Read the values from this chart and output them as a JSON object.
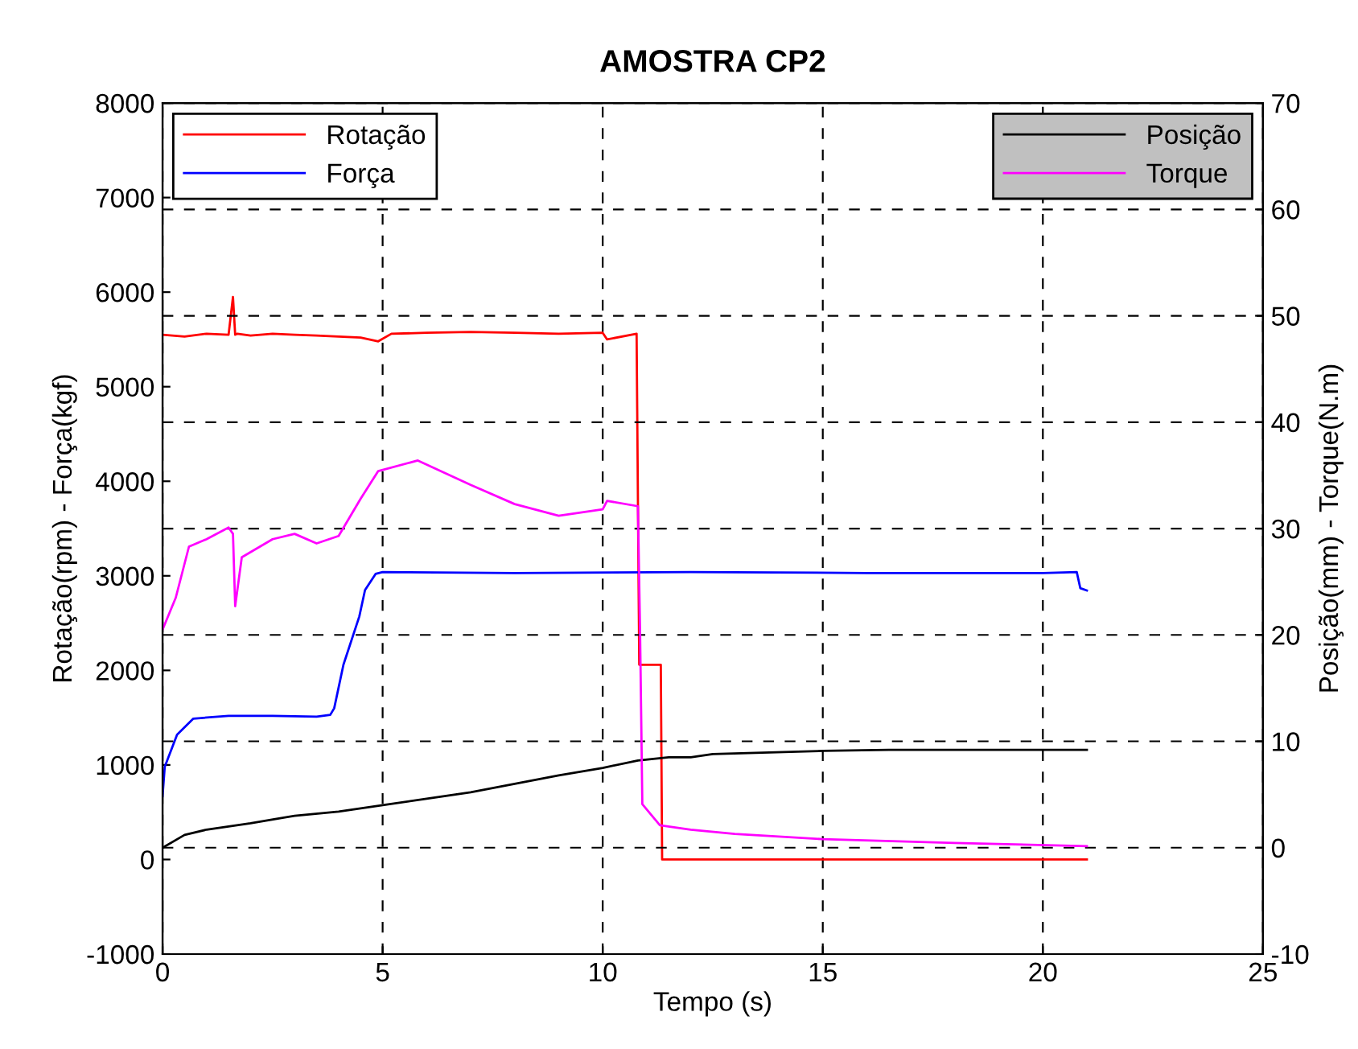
{
  "chart_data": {
    "type": "line",
    "title": "AMOSTRA CP2",
    "xlabel": "Tempo (s)",
    "ylabel": "Rotação(rpm) - Força(kgf)",
    "y2label": "Posição(mm) - Torque(N.m)",
    "xlim": [
      0,
      25
    ],
    "xticks": [
      0,
      5,
      10,
      15,
      20,
      25
    ],
    "ylim": [
      -1000,
      8000
    ],
    "yticks": [
      -1000,
      0,
      1000,
      2000,
      3000,
      4000,
      5000,
      6000,
      7000,
      8000
    ],
    "y2lim": [
      -10,
      70
    ],
    "y2ticks": [
      -10,
      0,
      10,
      20,
      30,
      40,
      50,
      60,
      70
    ],
    "grid": true,
    "legend": [
      "top left",
      "top right"
    ],
    "line_style": "solid",
    "marker": "none",
    "series": [
      {
        "name": "Rotação",
        "color": "#ff0000",
        "x": [
          0,
          0.5,
          1,
          1.5,
          1.6,
          1.65,
          1.7,
          2,
          2.5,
          3,
          3.5,
          4,
          4.5,
          4.9,
          5.2,
          6,
          7,
          8,
          9,
          10,
          10.1,
          10.77,
          10.83,
          11.32,
          11.35,
          15,
          21
        ],
        "values": [
          5550,
          5530,
          5560,
          5550,
          5950,
          5550,
          5560,
          5540,
          5560,
          5550,
          5540,
          5530,
          5520,
          5480,
          5560,
          5570,
          5580,
          5570,
          5560,
          5570,
          5500,
          5560,
          2060,
          2060,
          0,
          0,
          0
        ]
      },
      {
        "name": "Força",
        "color": "#0000ff",
        "x": [
          0,
          0.05,
          0.33,
          0.7,
          1.5,
          2.5,
          3.5,
          3.81,
          3.9,
          4.11,
          4.47,
          4.6,
          4.84,
          5,
          8,
          12,
          16,
          20,
          20.77,
          20.85,
          21
        ],
        "values": [
          670,
          980,
          1320,
          1490,
          1520,
          1520,
          1510,
          1530,
          1600,
          2060,
          2570,
          2850,
          3020,
          3040,
          3030,
          3040,
          3030,
          3030,
          3040,
          2870,
          2845
        ]
      },
      {
        "name": "Posição",
        "color": "#000000",
        "axis": "y2",
        "x": [
          0,
          0.5,
          1,
          2,
          3,
          4,
          5,
          6,
          7,
          8,
          9,
          10,
          10.8,
          11.5,
          12,
          12.5,
          15,
          16.5,
          21
        ],
        "values": [
          0,
          1.2,
          1.7,
          2.3,
          3.0,
          3.4,
          4.0,
          4.6,
          5.2,
          6.0,
          6.8,
          7.5,
          8.2,
          8.5,
          8.5,
          8.8,
          9.1,
          9.2,
          9.2
        ]
      },
      {
        "name": "Torque",
        "color": "#ff00ff",
        "axis": "y2",
        "x": [
          0,
          0.3,
          0.6,
          1,
          1.5,
          1.6,
          1.65,
          1.8,
          2.5,
          3,
          3.5,
          4,
          4.5,
          4.9,
          5.8,
          7,
          8,
          9,
          10,
          10.1,
          10.8,
          10.85,
          10.9,
          11.3,
          12,
          13,
          15,
          18,
          21
        ],
        "values": [
          20.5,
          23.5,
          28.3,
          29,
          30.1,
          29.5,
          22.7,
          27.3,
          29,
          29.5,
          28.6,
          29.3,
          32.8,
          35.4,
          36.4,
          34.1,
          32.3,
          31.2,
          31.8,
          32.6,
          32.1,
          20,
          4.1,
          2.1,
          1.7,
          1.3,
          0.8,
          0.45,
          0.15
        ]
      }
    ]
  }
}
